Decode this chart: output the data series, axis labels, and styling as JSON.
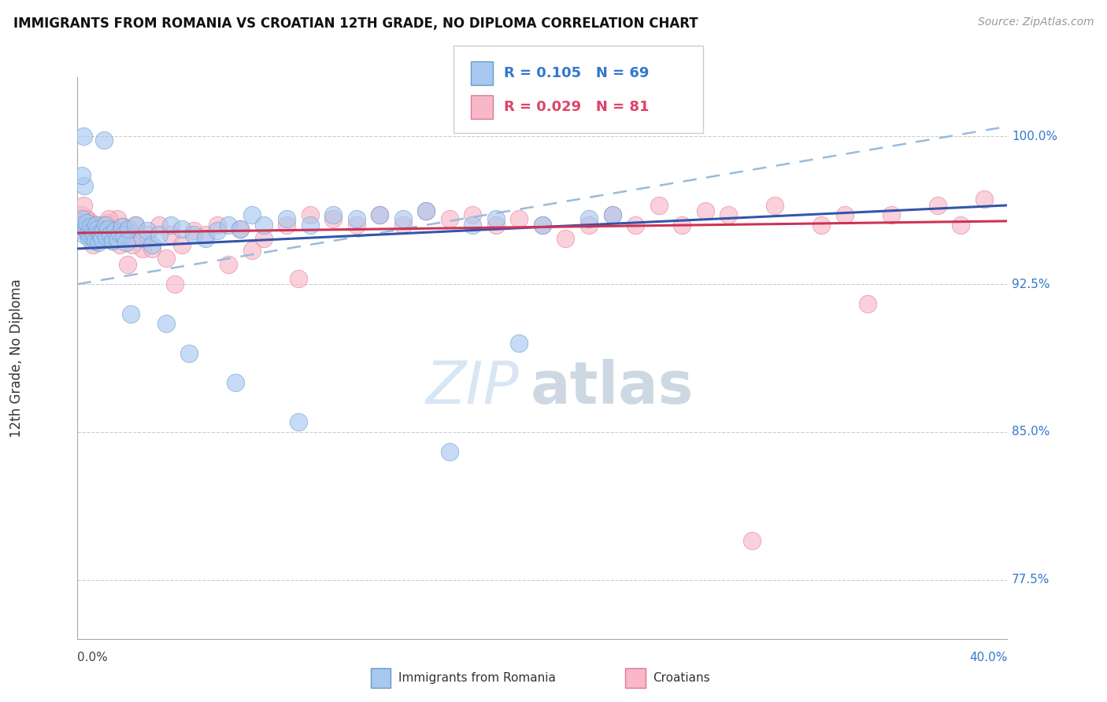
{
  "title": "IMMIGRANTS FROM ROMANIA VS CROATIAN 12TH GRADE, NO DIPLOMA CORRELATION CHART",
  "source": "Source: ZipAtlas.com",
  "ylabel": "12th Grade, No Diploma",
  "y_ticks": [
    77.5,
    85.0,
    92.5,
    100.0
  ],
  "y_tick_labels": [
    "77.5%",
    "85.0%",
    "92.5%",
    "100.0%"
  ],
  "xlim": [
    0.0,
    40.0
  ],
  "ylim": [
    74.5,
    103.0
  ],
  "legend_r1": "0.105",
  "legend_n1": "69",
  "legend_r2": "0.029",
  "legend_n2": "81",
  "color_blue_fill": "#A8C8F0",
  "color_blue_edge": "#6699CC",
  "color_pink_fill": "#F8B8C8",
  "color_pink_edge": "#DD7799",
  "color_line_blue_solid": "#3355AA",
  "color_line_pink_solid": "#CC3355",
  "color_line_blue_dash": "#99BBDD",
  "color_blue_text": "#3377CC",
  "color_pink_text": "#DD4466",
  "color_grid": "#CCCCCC",
  "color_spine": "#AAAAAA",
  "bottom_blue_label": "Immigrants from Romania",
  "bottom_pink_label": "Croatians",
  "blue_x": [
    0.15,
    0.2,
    0.25,
    0.3,
    0.35,
    0.4,
    0.45,
    0.5,
    0.55,
    0.6,
    0.65,
    0.7,
    0.75,
    0.8,
    0.85,
    0.9,
    0.95,
    1.0,
    1.05,
    1.1,
    1.2,
    1.25,
    1.3,
    1.4,
    1.5,
    1.6,
    1.7,
    1.8,
    1.9,
    2.0,
    2.1,
    2.2,
    2.5,
    2.8,
    3.0,
    3.2,
    3.5,
    4.0,
    4.5,
    5.0,
    5.5,
    6.0,
    6.5,
    7.0,
    7.5,
    8.0,
    9.0,
    10.0,
    11.0,
    12.0,
    13.0,
    14.0,
    15.0,
    17.0,
    18.0,
    20.0,
    22.0,
    23.0,
    2.3,
    3.8,
    4.8,
    6.8,
    9.5,
    16.0,
    19.0,
    1.15,
    0.3,
    0.2,
    0.25
  ],
  "blue_y": [
    95.5,
    95.8,
    95.2,
    95.0,
    95.3,
    95.6,
    95.1,
    94.8,
    95.4,
    94.9,
    95.2,
    95.0,
    94.7,
    95.5,
    95.3,
    94.6,
    95.1,
    95.0,
    94.8,
    95.2,
    95.5,
    94.9,
    95.3,
    95.0,
    94.7,
    95.2,
    94.8,
    95.1,
    95.4,
    95.0,
    94.6,
    95.3,
    95.5,
    94.8,
    95.2,
    94.5,
    95.0,
    95.5,
    95.3,
    95.0,
    94.8,
    95.2,
    95.5,
    95.3,
    96.0,
    95.5,
    95.8,
    95.5,
    96.0,
    95.8,
    96.0,
    95.8,
    96.2,
    95.5,
    95.8,
    95.5,
    95.8,
    96.0,
    91.0,
    90.5,
    89.0,
    87.5,
    85.5,
    84.0,
    89.5,
    99.8,
    97.5,
    98.0,
    100.0
  ],
  "pink_x": [
    0.1,
    0.2,
    0.3,
    0.4,
    0.5,
    0.6,
    0.7,
    0.8,
    0.9,
    1.0,
    1.1,
    1.2,
    1.3,
    1.4,
    1.5,
    1.6,
    1.7,
    1.8,
    1.9,
    2.0,
    2.1,
    2.2,
    2.3,
    2.5,
    2.8,
    3.0,
    3.5,
    4.0,
    4.5,
    5.0,
    5.5,
    6.0,
    7.0,
    8.0,
    9.0,
    10.0,
    11.0,
    12.0,
    13.0,
    14.0,
    15.0,
    16.0,
    17.0,
    18.0,
    19.0,
    20.0,
    21.0,
    22.0,
    23.0,
    24.0,
    25.0,
    27.0,
    28.0,
    30.0,
    32.0,
    33.0,
    35.0,
    37.0,
    38.0,
    39.0,
    0.35,
    0.55,
    0.75,
    0.95,
    1.15,
    1.55,
    1.95,
    2.35,
    3.2,
    3.8,
    6.5,
    9.5,
    26.0,
    0.25,
    0.65,
    1.35,
    2.15,
    4.2,
    7.5,
    29.0,
    34.0
  ],
  "pink_y": [
    95.5,
    96.0,
    95.3,
    95.8,
    95.2,
    95.6,
    95.4,
    95.0,
    95.3,
    95.5,
    94.8,
    95.2,
    95.6,
    95.0,
    94.7,
    95.3,
    95.8,
    94.5,
    95.1,
    95.4,
    95.2,
    95.0,
    94.8,
    95.5,
    94.3,
    95.0,
    95.5,
    95.0,
    94.5,
    95.2,
    95.0,
    95.5,
    95.3,
    94.8,
    95.5,
    96.0,
    95.8,
    95.5,
    96.0,
    95.5,
    96.2,
    95.8,
    96.0,
    95.5,
    95.8,
    95.5,
    94.8,
    95.5,
    96.0,
    95.5,
    96.5,
    96.2,
    96.0,
    96.5,
    95.5,
    96.0,
    96.0,
    96.5,
    95.5,
    96.8,
    95.8,
    95.5,
    95.0,
    94.8,
    95.5,
    95.3,
    95.0,
    94.5,
    94.3,
    93.8,
    93.5,
    92.8,
    95.5,
    96.5,
    94.5,
    95.8,
    93.5,
    92.5,
    94.2,
    79.5,
    91.5
  ],
  "blue_line_x0": 0.0,
  "blue_line_x1": 40.0,
  "blue_line_y0": 94.3,
  "blue_line_y1": 96.5,
  "pink_line_y0": 95.1,
  "pink_line_y1": 95.7,
  "dashed_line_y0": 92.5,
  "dashed_line_y1": 100.5
}
